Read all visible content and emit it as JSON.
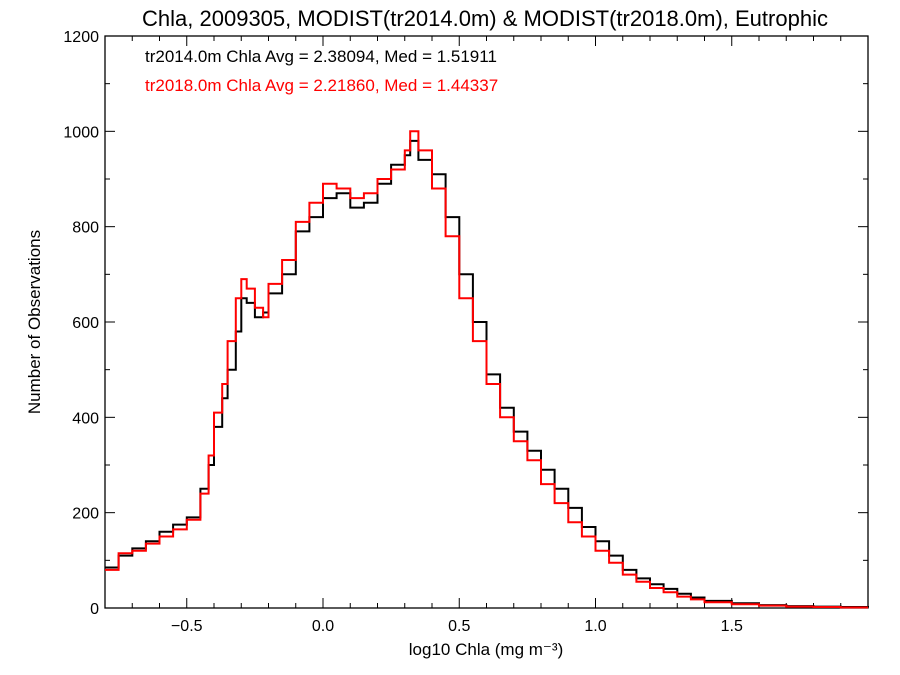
{
  "chart_data": {
    "type": "line",
    "style": "step-histogram",
    "title": "Chla, 2009305, MODIST(tr2014.0m) & MODIST(tr2018.0m), Eutrophic",
    "xlabel": "log10 Chla (mg m⁻³)",
    "ylabel": "Number of Observations",
    "xlim": [
      -0.8,
      2.0
    ],
    "ylim": [
      0,
      1200
    ],
    "x_ticks": [
      -0.5,
      0.0,
      0.5,
      1.0,
      1.5
    ],
    "x_tick_labels": [
      "−0.5",
      "0.0",
      "0.5",
      "1.0",
      "1.5"
    ],
    "y_ticks": [
      0,
      200,
      400,
      600,
      800,
      1000,
      1200
    ],
    "y_tick_labels": [
      "0",
      "200",
      "400",
      "600",
      "800",
      "1000",
      "1200"
    ],
    "grid": false,
    "legend": "none",
    "annotations": [
      {
        "text": "tr2014.0m Chla Avg = 2.38094, Med = 1.51911",
        "color": "#000000"
      },
      {
        "text": "tr2018.0m Chla Avg = 2.21860, Med = 1.44337",
        "color": "#ff0000"
      }
    ],
    "series": [
      {
        "color": "#000000",
        "x": [
          -0.8,
          -0.75,
          -0.7,
          -0.65,
          -0.6,
          -0.55,
          -0.5,
          -0.45,
          -0.42,
          -0.4,
          -0.37,
          -0.35,
          -0.32,
          -0.3,
          -0.28,
          -0.25,
          -0.22,
          -0.2,
          -0.15,
          -0.1,
          -0.05,
          0.0,
          0.05,
          0.1,
          0.15,
          0.2,
          0.25,
          0.3,
          0.32,
          0.35,
          0.4,
          0.45,
          0.5,
          0.55,
          0.6,
          0.65,
          0.7,
          0.75,
          0.8,
          0.85,
          0.9,
          0.95,
          1.0,
          1.05,
          1.1,
          1.15,
          1.2,
          1.25,
          1.3,
          1.35,
          1.4,
          1.5,
          1.6,
          1.7,
          1.8,
          1.9,
          2.0
        ],
        "y": [
          85,
          110,
          125,
          140,
          160,
          175,
          190,
          250,
          300,
          380,
          440,
          500,
          580,
          650,
          640,
          610,
          620,
          660,
          700,
          790,
          820,
          860,
          870,
          840,
          850,
          890,
          930,
          950,
          980,
          940,
          910,
          820,
          700,
          600,
          490,
          420,
          370,
          330,
          290,
          250,
          210,
          170,
          140,
          110,
          80,
          62,
          50,
          40,
          30,
          22,
          15,
          10,
          6,
          4,
          3,
          2,
          1
        ]
      },
      {
        "color": "#ff0000",
        "x": [
          -0.8,
          -0.75,
          -0.7,
          -0.65,
          -0.6,
          -0.55,
          -0.5,
          -0.45,
          -0.42,
          -0.4,
          -0.37,
          -0.35,
          -0.32,
          -0.3,
          -0.28,
          -0.25,
          -0.22,
          -0.2,
          -0.15,
          -0.1,
          -0.05,
          0.0,
          0.05,
          0.1,
          0.15,
          0.2,
          0.25,
          0.3,
          0.32,
          0.35,
          0.4,
          0.45,
          0.5,
          0.55,
          0.6,
          0.65,
          0.7,
          0.75,
          0.8,
          0.85,
          0.9,
          0.95,
          1.0,
          1.05,
          1.1,
          1.15,
          1.2,
          1.25,
          1.3,
          1.35,
          1.4,
          1.5,
          1.6,
          1.7,
          1.8,
          1.9,
          2.0
        ],
        "y": [
          80,
          115,
          120,
          135,
          150,
          165,
          185,
          240,
          320,
          410,
          470,
          560,
          650,
          690,
          670,
          630,
          610,
          680,
          730,
          810,
          850,
          890,
          880,
          860,
          870,
          900,
          920,
          960,
          1000,
          960,
          880,
          780,
          650,
          560,
          470,
          400,
          350,
          310,
          260,
          220,
          180,
          150,
          120,
          95,
          70,
          55,
          42,
          33,
          24,
          18,
          12,
          8,
          5,
          3,
          2,
          1,
          1
        ]
      }
    ]
  }
}
